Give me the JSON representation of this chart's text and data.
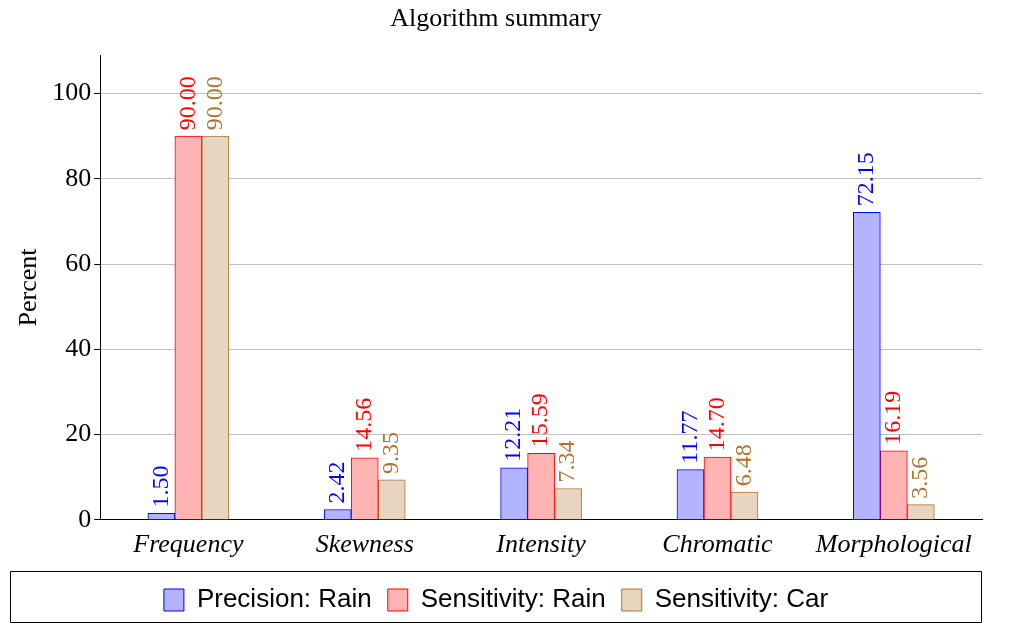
{
  "chart_data": {
    "type": "bar",
    "title": "Algorithm summary",
    "ylabel": "Percent",
    "categories": [
      "Frequency",
      "Skewness",
      "Intensity",
      "Chromatic",
      "Morphological"
    ],
    "series": [
      {
        "name": "Precision: Rain",
        "color": "#b3b3ff",
        "values": [
          1.5,
          2.42,
          12.21,
          11.77,
          72.15
        ],
        "value_labels": [
          "1.50",
          "2.42",
          "12.21",
          "11.77",
          "72.15"
        ]
      },
      {
        "name": "Sensitivity: Rain",
        "color": "#ffb3b3",
        "values": [
          90.0,
          14.56,
          15.59,
          14.7,
          16.19
        ],
        "value_labels": [
          "90.00",
          "14.56",
          "15.59",
          "14.70",
          "16.19"
        ]
      },
      {
        "name": "Sensitivity: Car",
        "color": "#e8d5c0",
        "values": [
          90.0,
          9.35,
          7.34,
          6.48,
          3.56
        ],
        "value_labels": [
          "90.00",
          "9.35",
          "7.34",
          "6.48",
          "3.56"
        ]
      }
    ],
    "ylim": [
      0,
      109
    ],
    "yticks": [
      0,
      20,
      40,
      60,
      80,
      100
    ],
    "grid": "y",
    "legend": "bottom"
  }
}
